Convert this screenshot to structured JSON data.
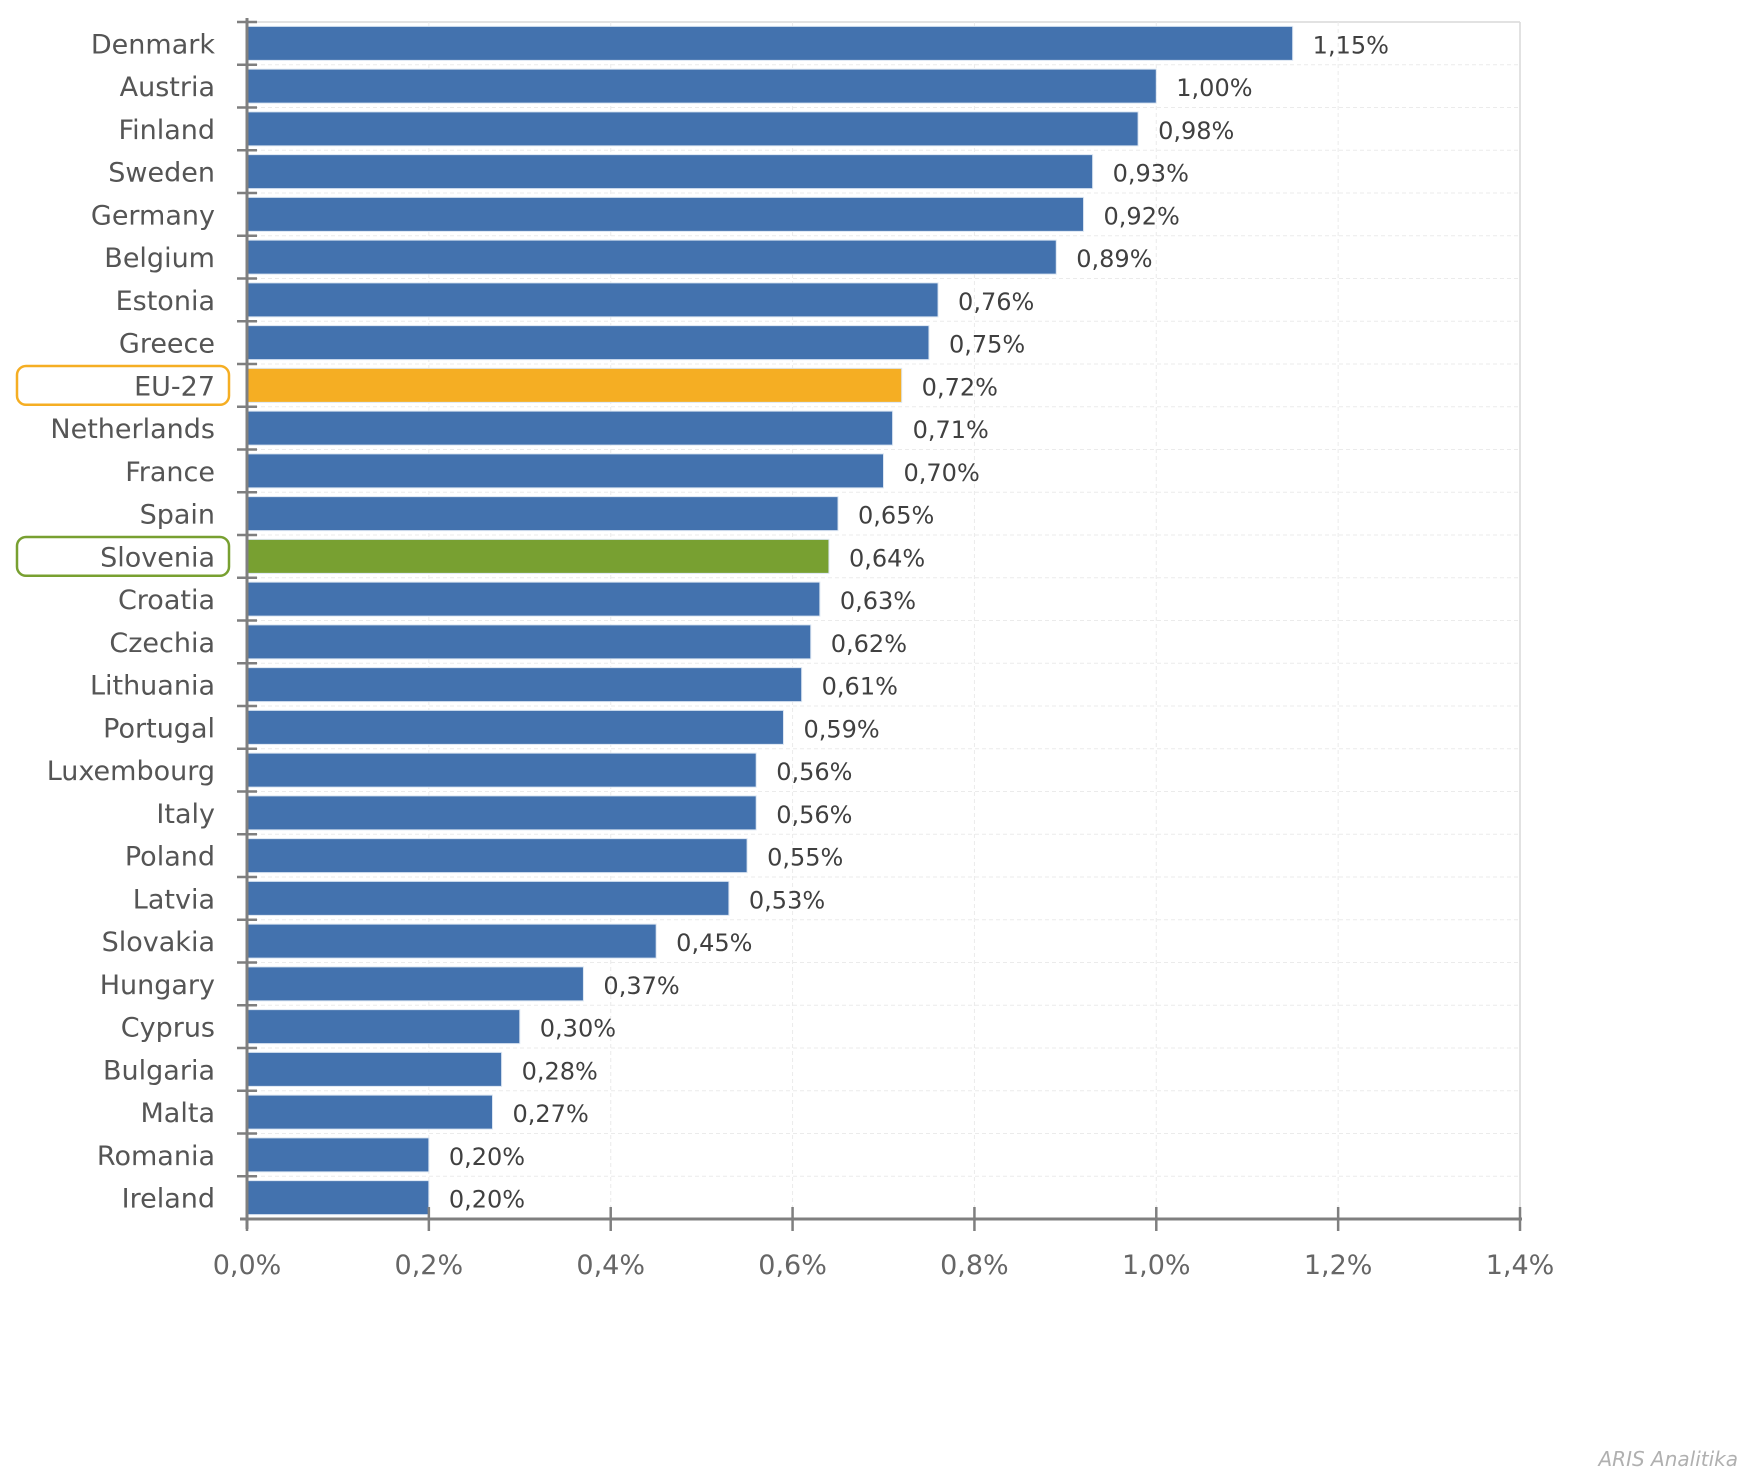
{
  "chart_data": {
    "type": "bar",
    "orientation": "horizontal",
    "categories": [
      "Denmark",
      "Austria",
      "Finland",
      "Sweden",
      "Germany",
      "Belgium",
      "Estonia",
      "Greece",
      "EU-27",
      "Netherlands",
      "France",
      "Spain",
      "Slovenia",
      "Croatia",
      "Czechia",
      "Lithuania",
      "Portugal",
      "Luxembourg",
      "Italy",
      "Poland",
      "Latvia",
      "Slovakia",
      "Hungary",
      "Cyprus",
      "Bulgaria",
      "Malta",
      "Romania",
      "Ireland"
    ],
    "values": [
      1.15,
      1.0,
      0.98,
      0.93,
      0.92,
      0.89,
      0.76,
      0.75,
      0.72,
      0.71,
      0.7,
      0.65,
      0.64,
      0.63,
      0.62,
      0.61,
      0.59,
      0.56,
      0.56,
      0.55,
      0.53,
      0.45,
      0.37,
      0.3,
      0.28,
      0.27,
      0.2,
      0.2
    ],
    "value_labels": [
      "1,15%",
      "1,00%",
      "0,98%",
      "0,93%",
      "0,92%",
      "0,89%",
      "0,76%",
      "0,75%",
      "0,72%",
      "0,71%",
      "0,70%",
      "0,65%",
      "0,64%",
      "0,63%",
      "0,62%",
      "0,61%",
      "0,59%",
      "0,56%",
      "0,56%",
      "0,55%",
      "0,53%",
      "0,45%",
      "0,37%",
      "0,30%",
      "0,28%",
      "0,27%",
      "0,20%",
      "0,20%"
    ],
    "xlim": [
      0,
      1.4
    ],
    "x_ticks": [
      0,
      0.2,
      0.4,
      0.6,
      0.8,
      1.0,
      1.2,
      1.4
    ],
    "x_tick_labels": [
      "0,0%",
      "0,2%",
      "0,4%",
      "0,6%",
      "0,8%",
      "1,0%",
      "1,2%",
      "1,4%"
    ],
    "title": "",
    "xlabel": "",
    "ylabel": "",
    "grid": true,
    "legend": "none",
    "colors": {
      "default": "#4372AE",
      "highlight_eu": "#F5AE23",
      "highlight_slovenia": "#78A031",
      "axis": "#7F7F7F",
      "grid": "#EBEBEB"
    },
    "highlights": [
      {
        "category": "EU-27",
        "color": "#F5AE23"
      },
      {
        "category": "Slovenia",
        "color": "#78A031"
      }
    ],
    "credit": "ARIS Analitika"
  }
}
